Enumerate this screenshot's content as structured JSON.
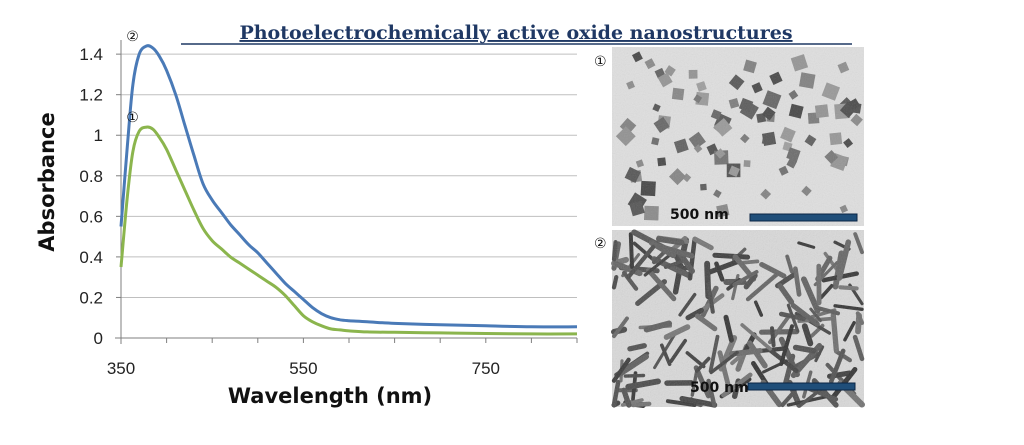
{
  "title": "Photoelectrochemically  active oxide nanostructures",
  "chart_data": {
    "type": "line",
    "xlabel": "Wavelength (nm)",
    "ylabel": "Absorbance",
    "xlim": [
      350,
      850
    ],
    "ylim": [
      0,
      1.45
    ],
    "x_ticks": [
      350,
      550,
      750
    ],
    "y_ticks": [
      0,
      0.2,
      0.4,
      0.6,
      0.8,
      1,
      1.2,
      1.4
    ],
    "y_tick_labels": [
      "0",
      "0.2",
      "0.4",
      "0.6",
      "0.8",
      "1",
      "1.2",
      "1.4"
    ],
    "grid": "horizontal",
    "series": [
      {
        "label": "②",
        "color": "#4a7ab7",
        "x": [
          350,
          357,
          363,
          370,
          378,
          385,
          392,
          400,
          410,
          420,
          430,
          440,
          450,
          460,
          470,
          480,
          490,
          500,
          510,
          520,
          530,
          540,
          550,
          560,
          570,
          580,
          590,
          600,
          620,
          650,
          700,
          750,
          800,
          850
        ],
        "y": [
          0.55,
          0.95,
          1.25,
          1.4,
          1.44,
          1.43,
          1.39,
          1.32,
          1.2,
          1.05,
          0.9,
          0.76,
          0.68,
          0.62,
          0.56,
          0.51,
          0.46,
          0.42,
          0.37,
          0.32,
          0.27,
          0.23,
          0.19,
          0.15,
          0.12,
          0.1,
          0.09,
          0.085,
          0.08,
          0.072,
          0.065,
          0.06,
          0.055,
          0.055
        ]
      },
      {
        "label": "①",
        "color": "#8bb54d",
        "x": [
          350,
          357,
          363,
          370,
          378,
          385,
          392,
          400,
          410,
          420,
          430,
          440,
          450,
          460,
          470,
          480,
          490,
          500,
          510,
          520,
          530,
          540,
          550,
          560,
          570,
          580,
          590,
          600,
          620,
          650,
          700,
          750,
          800,
          850
        ],
        "y": [
          0.35,
          0.7,
          0.92,
          1.02,
          1.04,
          1.03,
          0.99,
          0.93,
          0.83,
          0.73,
          0.63,
          0.54,
          0.48,
          0.44,
          0.4,
          0.37,
          0.34,
          0.31,
          0.28,
          0.25,
          0.21,
          0.16,
          0.11,
          0.08,
          0.06,
          0.045,
          0.04,
          0.035,
          0.03,
          0.028,
          0.025,
          0.022,
          0.02,
          0.02
        ]
      }
    ]
  },
  "micrographs": [
    {
      "marker": "①",
      "scale_label": "500 nm"
    },
    {
      "marker": "②",
      "scale_label": "500 nm"
    }
  ],
  "colors": {
    "title": "#1f3864",
    "scale_bar": "#1f4e79",
    "grid": "#bfbfbf",
    "axis": "#7f7f7f"
  }
}
